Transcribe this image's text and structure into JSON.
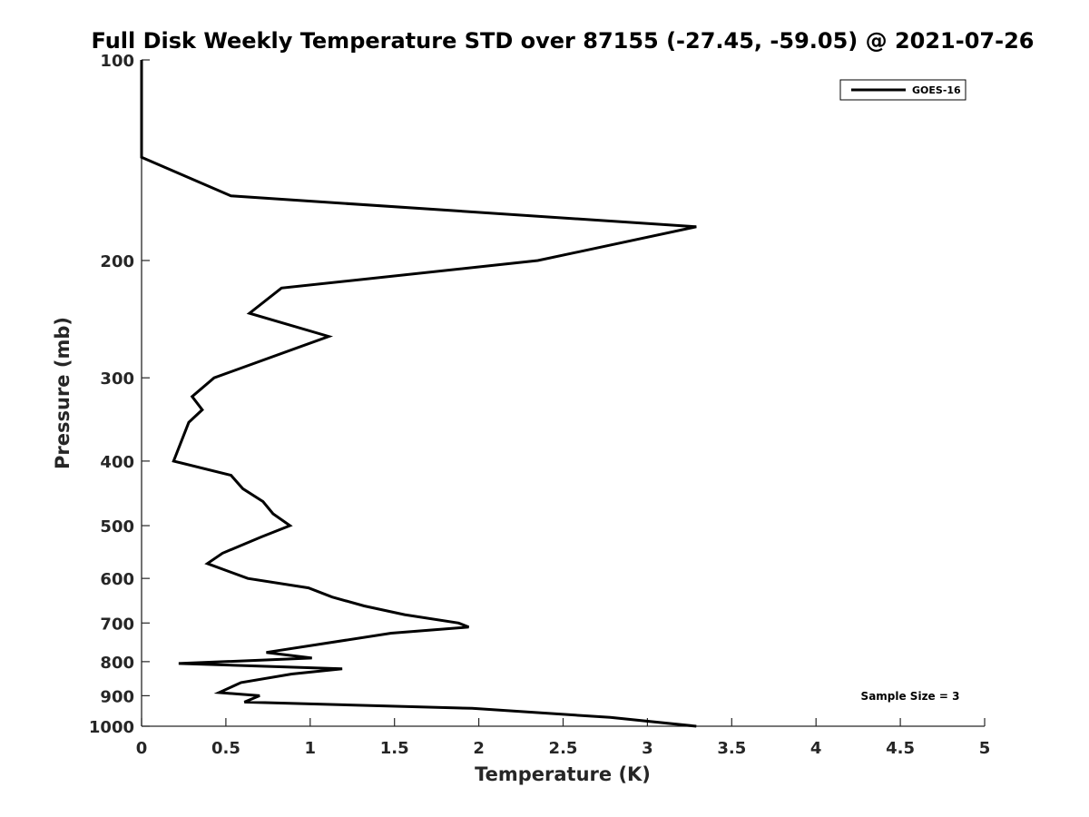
{
  "chart_data": {
    "type": "line",
    "title": "Full Disk Weekly Temperature STD over 87155 (-27.45, -59.05) @ 2021-07-26",
    "xlabel": "Temperature (K)",
    "ylabel": "Pressure (mb)",
    "xlim": [
      0,
      5
    ],
    "ylim": [
      100,
      1000
    ],
    "y_scale": "log",
    "y_reversed": true,
    "x_ticks": [
      0,
      0.5,
      1,
      1.5,
      2,
      2.5,
      3,
      3.5,
      4,
      4.5,
      5
    ],
    "x_tick_labels": [
      "0",
      "0.5",
      "1",
      "1.5",
      "2",
      "2.5",
      "3",
      "3.5",
      "4",
      "4.5",
      "5"
    ],
    "y_ticks": [
      100,
      200,
      300,
      400,
      500,
      600,
      700,
      800,
      900,
      1000
    ],
    "y_tick_labels": [
      "100",
      "200",
      "300",
      "400",
      "500",
      "600",
      "700",
      "800",
      "900",
      "1000"
    ],
    "grid": false,
    "legend_position": "top-right",
    "annotation": "Sample Size = 3",
    "series": [
      {
        "name": "GOES-16",
        "color": "#000000",
        "x": [
          0,
          0,
          0.53,
          3.29,
          2.35,
          0.83,
          0.64,
          1.11,
          0.43,
          0.3,
          0.36,
          0.28,
          0.19,
          0.53,
          0.6,
          0.72,
          0.78,
          0.88,
          0.71,
          0.48,
          0.39,
          0.63,
          0.99,
          1.13,
          1.32,
          1.56,
          1.88,
          1.94,
          1.48,
          0.74,
          1.01,
          0.22,
          1.19,
          0.89,
          0.59,
          0.46,
          0.7,
          0.61,
          1.96,
          2.78,
          3.29
        ],
        "y": [
          100,
          140,
          160,
          178,
          200,
          220,
          240,
          260,
          300,
          320,
          335,
          350,
          400,
          420,
          440,
          460,
          480,
          500,
          520,
          550,
          570,
          600,
          620,
          640,
          660,
          680,
          700,
          710,
          725,
          775,
          790,
          805,
          820,
          835,
          860,
          890,
          900,
          920,
          940,
          970,
          1000
        ]
      }
    ]
  }
}
